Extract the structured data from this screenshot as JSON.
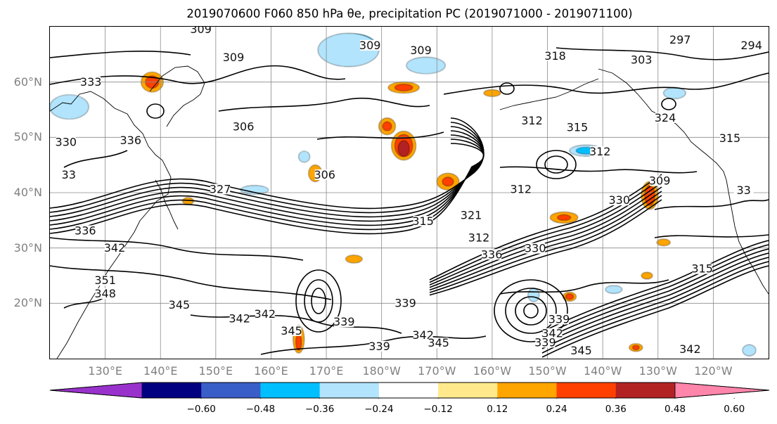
{
  "title": "2019070600 F060 850 hPa θe, precipitation PC (2019071000 - 2019071100)",
  "chart_data": {
    "type": "map-contour",
    "projection": "cylindrical",
    "lon_range": [
      120,
      250
    ],
    "lat_range": [
      10,
      70
    ],
    "grid": true,
    "lat_ticks": [
      {
        "lat": 60,
        "label": "60°N"
      },
      {
        "lat": 50,
        "label": "50°N"
      },
      {
        "lat": 40,
        "label": "40°N"
      },
      {
        "lat": 30,
        "label": "30°N"
      },
      {
        "lat": 20,
        "label": "20°N"
      }
    ],
    "lon_ticks": [
      {
        "lon": 130,
        "label": "130°E"
      },
      {
        "lon": 140,
        "label": "140°E"
      },
      {
        "lon": 150,
        "label": "150°E"
      },
      {
        "lon": 160,
        "label": "160°E"
      },
      {
        "lon": 170,
        "label": "170°E"
      },
      {
        "lon": 180,
        "label": "180°W"
      },
      {
        "lon": 190,
        "label": "170°W"
      },
      {
        "lon": 200,
        "label": "160°W"
      },
      {
        "lon": 210,
        "label": "150°W"
      },
      {
        "lon": 220,
        "label": "140°W"
      },
      {
        "lon": 230,
        "label": "130°W"
      },
      {
        "lon": 240,
        "label": "120°W"
      }
    ],
    "contour_labels": [
      {
        "text": "309",
        "lon": 147.3,
        "lat": 69.1
      },
      {
        "text": "309",
        "lon": 153.2,
        "lat": 64.0
      },
      {
        "text": "309",
        "lon": 177.9,
        "lat": 66.2
      },
      {
        "text": "309",
        "lon": 187.1,
        "lat": 65.3
      },
      {
        "text": "318",
        "lon": 211.4,
        "lat": 64.3
      },
      {
        "text": "297",
        "lon": 234.0,
        "lat": 67.2
      },
      {
        "text": "294",
        "lon": 246.9,
        "lat": 66.2
      },
      {
        "text": "303",
        "lon": 227.0,
        "lat": 63.6
      },
      {
        "text": "333",
        "lon": 127.4,
        "lat": 59.6
      },
      {
        "text": "336",
        "lon": 134.6,
        "lat": 49.0
      },
      {
        "text": "330",
        "lon": 122.9,
        "lat": 48.7
      },
      {
        "text": "306",
        "lon": 155.0,
        "lat": 51.5
      },
      {
        "text": "312",
        "lon": 207.2,
        "lat": 52.6
      },
      {
        "text": "315",
        "lon": 215.4,
        "lat": 51.4
      },
      {
        "text": "324",
        "lon": 231.3,
        "lat": 53.1
      },
      {
        "text": "315",
        "lon": 243.0,
        "lat": 49.4
      },
      {
        "text": "312",
        "lon": 219.5,
        "lat": 47.0
      },
      {
        "text": "306",
        "lon": 169.7,
        "lat": 42.8
      },
      {
        "text": "327",
        "lon": 150.8,
        "lat": 40.2
      },
      {
        "text": "312",
        "lon": 205.2,
        "lat": 40.2
      },
      {
        "text": "309",
        "lon": 230.3,
        "lat": 41.7
      },
      {
        "text": "330",
        "lon": 223.0,
        "lat": 38.2
      },
      {
        "text": "315",
        "lon": 187.5,
        "lat": 34.4
      },
      {
        "text": "321",
        "lon": 196.2,
        "lat": 35.5
      },
      {
        "text": "312",
        "lon": 197.6,
        "lat": 31.4
      },
      {
        "text": "330",
        "lon": 207.8,
        "lat": 29.5
      },
      {
        "text": "336",
        "lon": 199.9,
        "lat": 28.4
      },
      {
        "text": "336",
        "lon": 126.4,
        "lat": 32.7
      },
      {
        "text": "342",
        "lon": 131.7,
        "lat": 29.6
      },
      {
        "text": "351",
        "lon": 130.0,
        "lat": 23.7
      },
      {
        "text": "348",
        "lon": 130.0,
        "lat": 21.3
      },
      {
        "text": "345",
        "lon": 143.4,
        "lat": 19.3
      },
      {
        "text": "342",
        "lon": 154.3,
        "lat": 16.8
      },
      {
        "text": "342",
        "lon": 158.9,
        "lat": 17.6
      },
      {
        "text": "345",
        "lon": 163.7,
        "lat": 14.6
      },
      {
        "text": "339",
        "lon": 173.2,
        "lat": 16.2
      },
      {
        "text": "339",
        "lon": 184.3,
        "lat": 19.6
      },
      {
        "text": "339",
        "lon": 179.6,
        "lat": 11.8
      },
      {
        "text": "342",
        "lon": 187.5,
        "lat": 13.8
      },
      {
        "text": "345",
        "lon": 190.3,
        "lat": 12.4
      },
      {
        "text": "339",
        "lon": 212.1,
        "lat": 16.7
      },
      {
        "text": "342",
        "lon": 210.9,
        "lat": 14.1
      },
      {
        "text": "339",
        "lon": 209.6,
        "lat": 12.5
      },
      {
        "text": "345",
        "lon": 216.1,
        "lat": 11.0
      },
      {
        "text": "342",
        "lon": 235.8,
        "lat": 11.3
      },
      {
        "text": "315",
        "lon": 238.0,
        "lat": 25.8
      },
      {
        "text": "33",
        "lon": 123.4,
        "lat": 42.8
      },
      {
        "text": "33",
        "lon": 245.5,
        "lat": 40.0
      }
    ],
    "colorbar": {
      "extend": "both",
      "colors": [
        "#9932cc",
        "#000080",
        "#3a5ec8",
        "#00bfff",
        "#b2e4fd",
        "#ffffff",
        "#ffe98a",
        "#ffa500",
        "#ff4000",
        "#b22222",
        "#ff85ab"
      ],
      "boundaries": [
        -0.6,
        -0.48,
        -0.36,
        -0.24,
        -0.12,
        0.12,
        0.24,
        0.36,
        0.48,
        0.6
      ],
      "tick_labels": [
        "−0.60",
        "−0.48",
        "−0.36",
        "−0.24",
        "−0.12",
        "0.12",
        "0.24",
        "0.36",
        "0.48",
        "0.60"
      ]
    },
    "shaded_areas": [
      {
        "value": -0.36,
        "lon": 175.0,
        "lat": 66.5,
        "rlon": 4.0,
        "rlat": 2.2
      },
      {
        "value": -0.24,
        "lon": 174.0,
        "lat": 65.8,
        "rlon": 5.5,
        "rlat": 3.0
      },
      {
        "value": -0.36,
        "lon": 124.0,
        "lat": 55.5,
        "rlon": 2.5,
        "rlat": 1.5
      },
      {
        "value": -0.24,
        "lon": 123.5,
        "lat": 55.5,
        "rlon": 3.5,
        "rlat": 2.2
      },
      {
        "value": -0.24,
        "lon": 188.0,
        "lat": 63.0,
        "rlon": 3.5,
        "rlat": 1.5
      },
      {
        "value": -0.24,
        "lon": 217.0,
        "lat": 47.6,
        "rlon": 3.0,
        "rlat": 1.0
      },
      {
        "value": -0.36,
        "lon": 217.0,
        "lat": 47.6,
        "rlon": 1.8,
        "rlat": 0.6
      },
      {
        "value": -0.24,
        "lon": 166.0,
        "lat": 46.5,
        "rlon": 1.0,
        "rlat": 1.0
      },
      {
        "value": -0.24,
        "lon": 157.0,
        "lat": 40.5,
        "rlon": 2.5,
        "rlat": 0.8
      },
      {
        "value": -0.24,
        "lon": 233.0,
        "lat": 58.0,
        "rlon": 2.0,
        "rlat": 1.0
      },
      {
        "value": -0.24,
        "lon": 207.5,
        "lat": 21.5,
        "rlon": 1.0,
        "rlat": 1.2
      },
      {
        "value": -0.24,
        "lon": 222.0,
        "lat": 22.5,
        "rlon": 1.5,
        "rlat": 0.7
      },
      {
        "value": -0.24,
        "lon": 246.5,
        "lat": 11.5,
        "rlon": 1.2,
        "rlat": 1.0
      },
      {
        "value": 0.24,
        "lon": 184.0,
        "lat": 48.5,
        "rlon": 2.2,
        "rlat": 2.6
      },
      {
        "value": 0.36,
        "lon": 184.0,
        "lat": 48.5,
        "rlon": 1.6,
        "rlat": 2.0
      },
      {
        "value": 0.48,
        "lon": 184.0,
        "lat": 48.0,
        "rlon": 1.0,
        "rlat": 1.4
      },
      {
        "value": 0.24,
        "lon": 181.0,
        "lat": 52.0,
        "rlon": 1.5,
        "rlat": 1.5
      },
      {
        "value": 0.36,
        "lon": 181.0,
        "lat": 52.0,
        "rlon": 0.8,
        "rlat": 0.8
      },
      {
        "value": 0.24,
        "lon": 138.5,
        "lat": 60.0,
        "rlon": 2.0,
        "rlat": 1.8
      },
      {
        "value": 0.36,
        "lon": 138.5,
        "lat": 60.0,
        "rlon": 1.2,
        "rlat": 1.1
      },
      {
        "value": 0.24,
        "lon": 228.5,
        "lat": 39.5,
        "rlon": 1.5,
        "rlat": 2.5
      },
      {
        "value": 0.36,
        "lon": 228.5,
        "lat": 39.5,
        "rlon": 0.9,
        "rlat": 1.8
      },
      {
        "value": 0.24,
        "lon": 192.0,
        "lat": 42.0,
        "rlon": 2.0,
        "rlat": 1.5
      },
      {
        "value": 0.36,
        "lon": 192.0,
        "lat": 42.0,
        "rlon": 1.0,
        "rlat": 0.8
      },
      {
        "value": 0.24,
        "lon": 184.0,
        "lat": 59.0,
        "rlon": 2.8,
        "rlat": 1.0
      },
      {
        "value": 0.36,
        "lon": 184.0,
        "lat": 59.0,
        "rlon": 1.6,
        "rlat": 0.6
      },
      {
        "value": 0.24,
        "lon": 168.0,
        "lat": 43.5,
        "rlon": 1.2,
        "rlat": 1.5
      },
      {
        "value": 0.24,
        "lon": 214.0,
        "lat": 21.2,
        "rlon": 1.2,
        "rlat": 0.8
      },
      {
        "value": 0.36,
        "lon": 214.0,
        "lat": 21.2,
        "rlon": 0.7,
        "rlat": 0.5
      },
      {
        "value": 0.24,
        "lon": 213.0,
        "lat": 35.5,
        "rlon": 2.5,
        "rlat": 1.0
      },
      {
        "value": 0.36,
        "lon": 213.0,
        "lat": 35.5,
        "rlon": 1.2,
        "rlat": 0.5
      },
      {
        "value": 0.24,
        "lon": 228.0,
        "lat": 25.0,
        "rlon": 1.0,
        "rlat": 0.6
      },
      {
        "value": 0.24,
        "lon": 165.0,
        "lat": 13.5,
        "rlon": 1.0,
        "rlat": 2.5
      },
      {
        "value": 0.36,
        "lon": 165.0,
        "lat": 13.0,
        "rlon": 0.5,
        "rlat": 1.5
      },
      {
        "value": 0.24,
        "lon": 175.0,
        "lat": 28.0,
        "rlon": 1.5,
        "rlat": 0.7
      },
      {
        "value": 0.24,
        "lon": 200.0,
        "lat": 58.0,
        "rlon": 1.5,
        "rlat": 0.6
      },
      {
        "value": 0.24,
        "lon": 226.0,
        "lat": 12.0,
        "rlon": 1.2,
        "rlat": 0.7
      },
      {
        "value": 0.36,
        "lon": 226.0,
        "lat": 12.0,
        "rlon": 0.6,
        "rlat": 0.4
      },
      {
        "value": 0.24,
        "lon": 145.0,
        "lat": 38.5,
        "rlon": 1.0,
        "rlat": 0.6
      },
      {
        "value": 0.24,
        "lon": 231.0,
        "lat": 31.0,
        "rlon": 1.2,
        "rlat": 0.6
      }
    ]
  }
}
